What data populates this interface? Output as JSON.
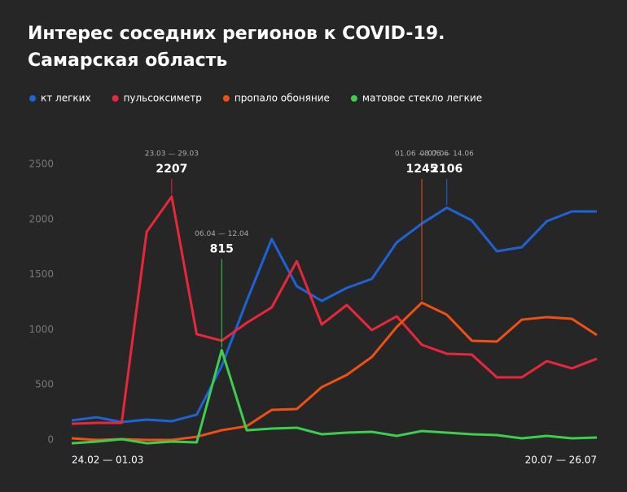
{
  "chart_data": {
    "type": "line",
    "title": [
      "Интерес соседних регионов к COVID-19.",
      "Самарская область"
    ],
    "categories": [
      "24.02 — 01.03",
      null,
      null,
      null,
      "23.03 — 29.03",
      null,
      "06.04 — 12.04",
      null,
      null,
      null,
      null,
      null,
      null,
      null,
      "01.06 — 07.06",
      "08.06 — 14.06",
      null,
      null,
      null,
      null,
      null,
      "20.07 — 26.07"
    ],
    "series": [
      {
        "name": "кт легких",
        "color": "#1e63d6",
        "annotate": [
          15
        ],
        "values": [
          177,
          206,
          162,
          184,
          170,
          229,
          671,
          1261,
          1822,
          1394,
          1261,
          1379,
          1460,
          1792,
          1962,
          2106,
          1991,
          1711,
          1748,
          1984,
          2072,
          2072
        ]
      },
      {
        "name": "пульсоксиметр",
        "color": "#e8283a",
        "annotate": [
          4
        ],
        "values": [
          147,
          155,
          155,
          1888,
          2207,
          959,
          900,
          1062,
          1202,
          1622,
          1047,
          1224,
          996,
          1121,
          863,
          782,
          774,
          568,
          568,
          715,
          649,
          737
        ]
      },
      {
        "name": "пропало обоняние",
        "color": "#ef5014",
        "annotate": [
          14
        ],
        "values": [
          15,
          0,
          7,
          0,
          0,
          29,
          88,
          125,
          273,
          280,
          479,
          590,
          752,
          1025,
          1245,
          1136,
          900,
          892,
          1091,
          1114,
          1099,
          951
        ]
      },
      {
        "name": "матовое стекло легкие",
        "color": "#3ccf4e",
        "annotate": [
          6
        ],
        "values": [
          -30,
          -15,
          7,
          -30,
          -15,
          -22,
          815,
          88,
          103,
          111,
          52,
          66,
          74,
          37,
          81,
          66,
          52,
          44,
          15,
          37,
          15,
          22
        ]
      }
    ],
    "ylim": [
      0,
      2500
    ],
    "yticks": [
      0,
      500,
      1000,
      1500,
      2000,
      2500
    ],
    "grid": false
  }
}
